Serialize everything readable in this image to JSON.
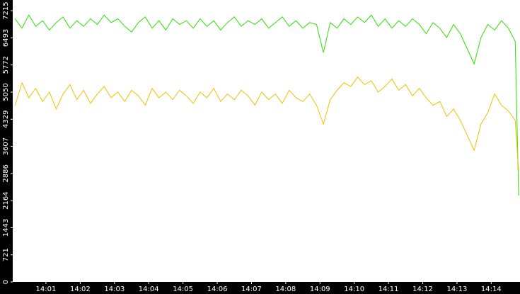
{
  "chart_data": {
    "type": "line",
    "x": [
      0.1,
      0.3,
      0.5,
      0.7,
      0.9,
      1.1,
      1.3,
      1.5,
      1.7,
      1.9,
      2.1,
      2.3,
      2.5,
      2.7,
      2.9,
      3.1,
      3.3,
      3.5,
      3.7,
      3.9,
      4.1,
      4.3,
      4.5,
      4.7,
      4.9,
      5.1,
      5.3,
      5.5,
      5.7,
      5.9,
      6.1,
      6.3,
      6.5,
      6.7,
      6.9,
      7.1,
      7.3,
      7.5,
      7.7,
      7.9,
      8.1,
      8.3,
      8.5,
      8.7,
      8.9,
      9.1,
      9.3,
      9.5,
      9.7,
      9.9,
      10.1,
      10.3,
      10.5,
      10.7,
      10.9,
      11.1,
      11.3,
      11.5,
      11.7,
      11.9,
      12.1,
      12.3,
      12.5,
      12.7,
      12.9,
      13.1,
      13.3,
      13.5,
      13.7,
      13.9,
      14.1,
      14.3,
      14.5,
      14.7,
      14.8
    ],
    "series": [
      {
        "color": "#2ee000",
        "values": [
          7000,
          6750,
          7100,
          6800,
          6950,
          6700,
          6900,
          7050,
          6750,
          6950,
          6800,
          7000,
          6850,
          7100,
          6900,
          7000,
          6800,
          6650,
          6900,
          7050,
          6750,
          6950,
          6700,
          7000,
          6850,
          6950,
          6750,
          7000,
          6800,
          6950,
          6700,
          6900,
          7050,
          6800,
          6950,
          6850,
          7000,
          6750,
          6900,
          7050,
          6800,
          6950,
          6750,
          6900,
          6850,
          6100,
          6900,
          6750,
          7000,
          6850,
          7050,
          6900,
          7100,
          6800,
          7000,
          6750,
          6950,
          6800,
          7000,
          6850,
          6600,
          6900,
          6750,
          6500,
          6850,
          6600,
          6200,
          5800,
          6500,
          6850,
          6700,
          6950,
          6750,
          6400,
          2300
        ]
      },
      {
        "color": "#f0c000",
        "values": [
          4700,
          5300,
          4900,
          5150,
          4800,
          5050,
          4600,
          5000,
          5250,
          4850,
          5100,
          4750,
          5000,
          5200,
          4900,
          5050,
          4800,
          5100,
          4950,
          4700,
          5150,
          4900,
          5050,
          4850,
          5100,
          4950,
          4750,
          5050,
          4900,
          5150,
          4800,
          5000,
          4850,
          5100,
          4950,
          4700,
          5050,
          4850,
          5000,
          4750,
          5100,
          4900,
          4800,
          5000,
          4700,
          4200,
          4850,
          5100,
          5300,
          5200,
          5450,
          5250,
          5350,
          5050,
          5200,
          5400,
          5100,
          5250,
          4950,
          5150,
          4900,
          4700,
          4800,
          4400,
          4600,
          4300,
          3900,
          3500,
          4200,
          4500,
          5000,
          4700,
          4550,
          4300,
          2950
        ]
      }
    ],
    "xlim": [
      0.03,
      14.84
    ],
    "xticks": [
      {
        "value": 1,
        "label": "14:01"
      },
      {
        "value": 2,
        "label": "14:02"
      },
      {
        "value": 3,
        "label": "14:03"
      },
      {
        "value": 4,
        "label": "14:04"
      },
      {
        "value": 5,
        "label": "14:05"
      },
      {
        "value": 6,
        "label": "14:06"
      },
      {
        "value": 7,
        "label": "14:07"
      },
      {
        "value": 8,
        "label": "14:08"
      },
      {
        "value": 9,
        "label": "14:09"
      },
      {
        "value": 10,
        "label": "14:10"
      },
      {
        "value": 11,
        "label": "14:11"
      },
      {
        "value": 12,
        "label": "14:12"
      },
      {
        "value": 13,
        "label": "14:13"
      },
      {
        "value": 14,
        "label": "14:14"
      }
    ],
    "ylim": [
      0,
      7500
    ],
    "yticks": [
      0,
      721,
      1443,
      2164,
      2886,
      3607,
      4329,
      5050,
      5772,
      6493,
      7215
    ],
    "grid": false
  }
}
